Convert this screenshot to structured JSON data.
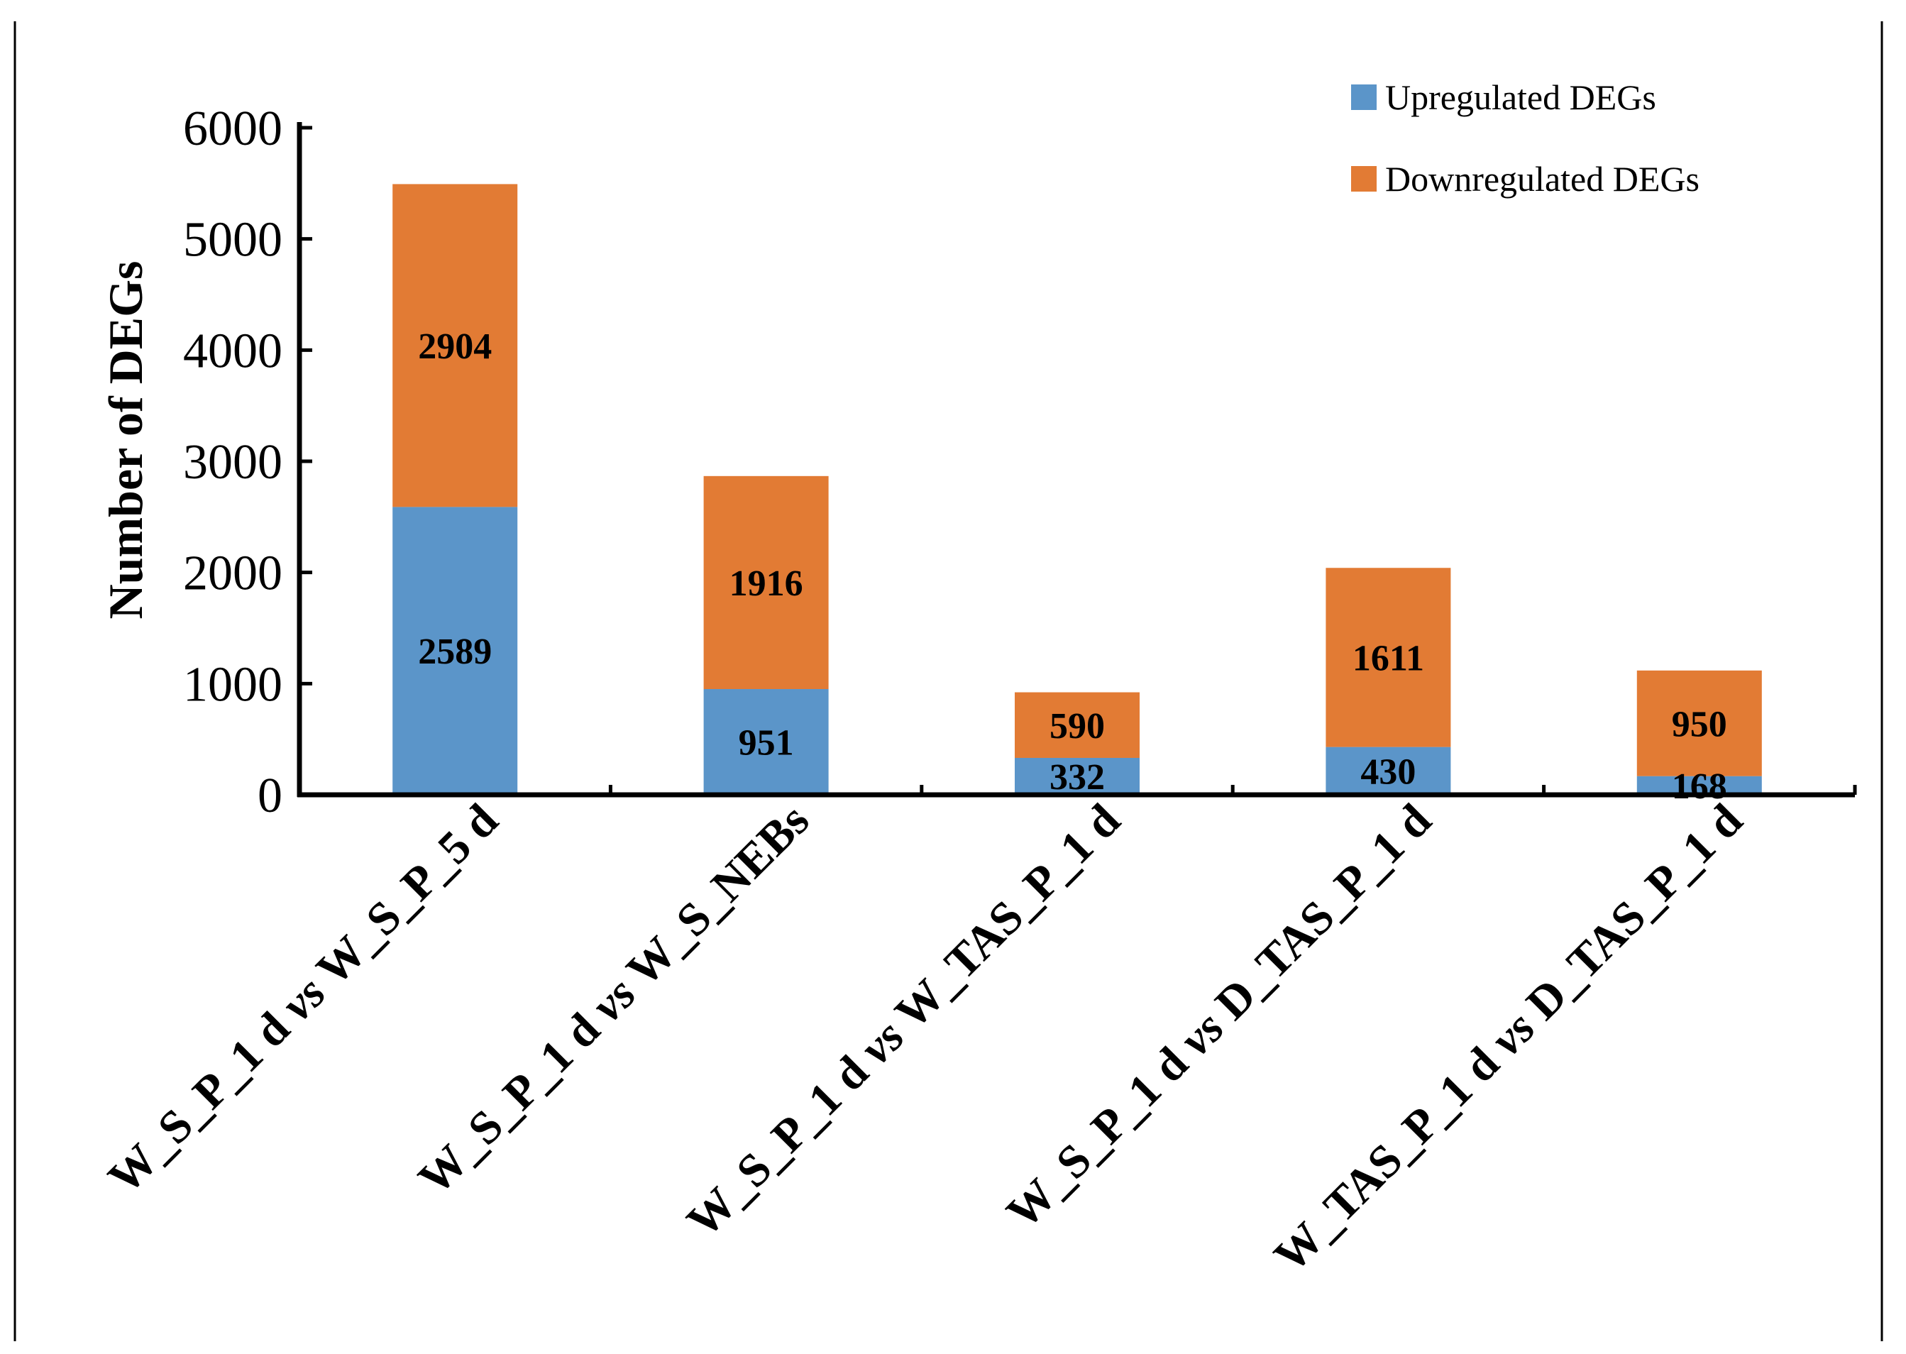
{
  "chart_data": {
    "type": "bar",
    "stacked": true,
    "title": "",
    "xlabel": "",
    "ylabel": "Number of DEGs",
    "ylim": [
      0,
      6000
    ],
    "yticks": [
      0,
      1000,
      2000,
      3000,
      4000,
      5000,
      6000
    ],
    "grid": false,
    "legend_position": "top-right",
    "categories": [
      {
        "prefix": "W_S_P_1 d",
        "vs": "vs",
        "suffix": "W_S_P_5 d"
      },
      {
        "prefix": "W_S_P_1 d",
        "vs": "vs",
        "suffix": "W_S_NEBs"
      },
      {
        "prefix": "W_S_P_1 d",
        "vs": "vs",
        "suffix": "W_TAS_P_1 d"
      },
      {
        "prefix": "W_S_P_1 d",
        "vs": "vs",
        "suffix": "D_TAS_P_1 d"
      },
      {
        "prefix": "W_TAS_P_1 d",
        "vs": "vs",
        "suffix": "D_TAS_P_1 d"
      }
    ],
    "series": [
      {
        "name": "Upregulated DEGs",
        "color": "#5b95c9",
        "values": [
          2589,
          951,
          332,
          430,
          168
        ]
      },
      {
        "name": "Downregulated DEGs",
        "color": "#e27b34",
        "values": [
          2904,
          1916,
          590,
          1611,
          950
        ]
      }
    ]
  }
}
